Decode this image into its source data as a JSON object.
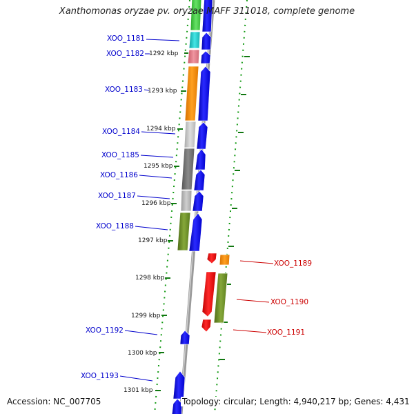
{
  "title": "Xanthomonas oryzae pv. oryzae MAFF 311018, complete genome",
  "accession": "Accession: NC_007705",
  "topology": "Topology: circular; Length: 4,940,217 bp; Genes: 4,431",
  "scale_labels": [
    "1292 kbp",
    "1293 kbp",
    "1294 kbp",
    "1295 kbp",
    "1296 kbp",
    "1297 kbp",
    "1298 kbp",
    "1299 kbp",
    "1300 kbp",
    "1301 kbp"
  ],
  "left_genes": [
    "XOO_1181",
    "XOO_1182",
    "XOO_1183",
    "XOO_1184",
    "XOO_1185",
    "XOO_1186",
    "XOO_1187",
    "XOO_1188",
    "XOO_1192",
    "XOO_1193"
  ],
  "right_genes": [
    "XOO_1189",
    "XOO_1190",
    "XOO_1191"
  ],
  "colors": {
    "forward_gene": "#0000ee",
    "reverse_gene": "#ee0000",
    "label_left": "#0000cc",
    "label_right": "#cc0000",
    "tick": "#118811",
    "backbone": "#888888",
    "orange": "#ff8c00",
    "olive": "#6b8e23",
    "cyan": "#22cccc",
    "pink": "#e57a86",
    "green": "#44cc44",
    "light_gray": "#c8c8c8",
    "dark_gray": "#707070",
    "mid_gray": "#b0b0b0"
  }
}
